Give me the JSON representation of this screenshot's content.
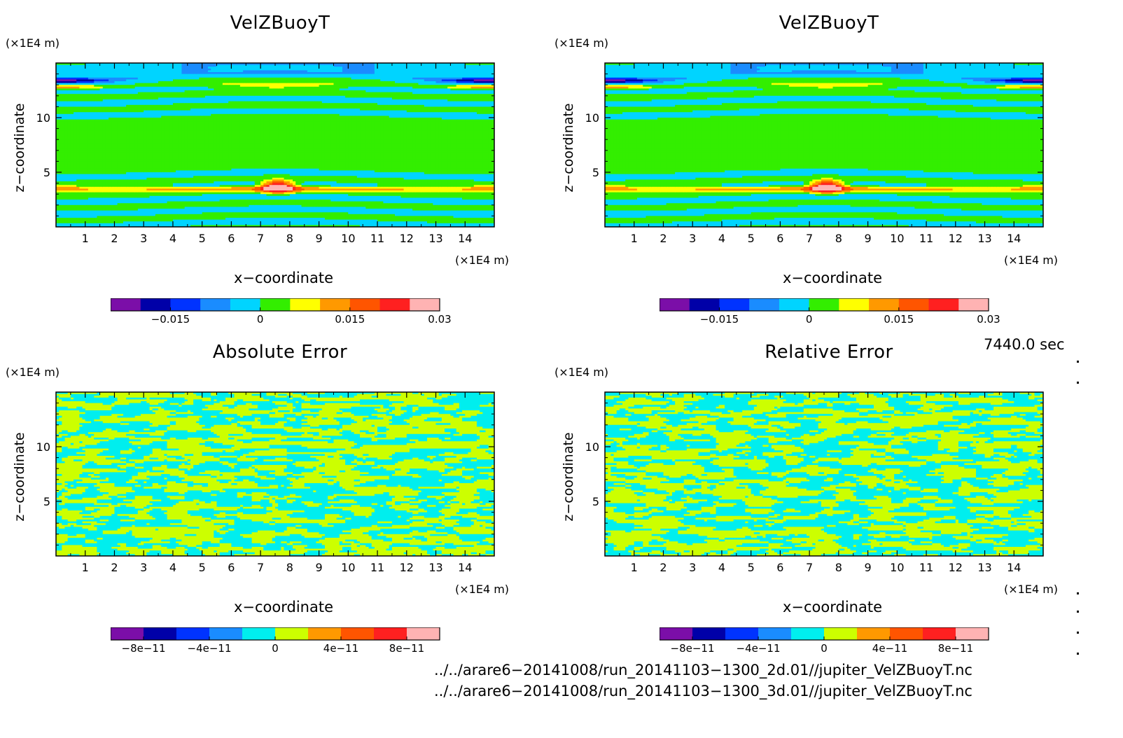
{
  "panels": [
    {
      "title": "VelZBuoyT",
      "y_unit": "(×1E4 m)",
      "x_unit": "(×1E4 m)",
      "ylabel": "z−coordinate",
      "xlabel": "x−coordinate",
      "colorbar": {
        "colors": [
          "#7b0ea8",
          "#0000a8",
          "#0033ff",
          "#1a8cff",
          "#00d4ff",
          "#33ee00",
          "#ffff00",
          "#ff9900",
          "#ff5500",
          "#ff2020",
          "#ffb3b3"
        ],
        "tick_labels": [
          "−0.015",
          "0",
          "0.015",
          "0.03"
        ],
        "tick_values": [
          -0.015,
          0,
          0.015,
          0.03
        ],
        "range": [
          -0.025,
          0.03
        ]
      }
    },
    {
      "title": "VelZBuoyT",
      "y_unit": "(×1E4 m)",
      "x_unit": "(×1E4 m)",
      "ylabel": "z−coordinate",
      "xlabel": "x−coordinate",
      "colorbar": {
        "colors": [
          "#7b0ea8",
          "#0000a8",
          "#0033ff",
          "#1a8cff",
          "#00d4ff",
          "#33ee00",
          "#ffff00",
          "#ff9900",
          "#ff5500",
          "#ff2020",
          "#ffb3b3"
        ],
        "tick_labels": [
          "−0.015",
          "0",
          "0.015",
          "0.03"
        ],
        "tick_values": [
          -0.015,
          0,
          0.015,
          0.03
        ],
        "range": [
          -0.025,
          0.03
        ]
      }
    },
    {
      "title": "Absolute Error",
      "y_unit": "(×1E4 m)",
      "x_unit": "(×1E4 m)",
      "ylabel": "z−coordinate",
      "xlabel": "x−coordinate",
      "colorbar": {
        "colors": [
          "#7b0ea8",
          "#0000a8",
          "#0033ff",
          "#1a8cff",
          "#00eeee",
          "#ccff00",
          "#ff9900",
          "#ff5500",
          "#ff2020",
          "#ffb3b3"
        ],
        "tick_labels": [
          "−8e−11",
          "−4e−11",
          "0",
          "4e−11",
          "8e−11"
        ],
        "tick_values": [
          -8e-11,
          -4e-11,
          0,
          4e-11,
          8e-11
        ],
        "range": [
          -1e-10,
          1e-10
        ]
      }
    },
    {
      "title": "Relative Error",
      "y_unit": "(×1E4 m)",
      "x_unit": "(×1E4 m)",
      "ylabel": "z−coordinate",
      "xlabel": "x−coordinate",
      "colorbar": {
        "colors": [
          "#7b0ea8",
          "#0000a8",
          "#0033ff",
          "#1a8cff",
          "#00eeee",
          "#ccff00",
          "#ff9900",
          "#ff5500",
          "#ff2020",
          "#ffb3b3"
        ],
        "tick_labels": [
          "−8e−11",
          "−4e−11",
          "0",
          "4e−11",
          "8e−11"
        ],
        "tick_values": [
          -8e-11,
          -4e-11,
          0,
          4e-11,
          8e-11
        ],
        "range": [
          -1e-10,
          1e-10
        ]
      }
    }
  ],
  "chart_data": [
    {
      "type": "heatmap",
      "title": "VelZBuoyT",
      "xlabel": "x−coordinate",
      "ylabel": "z−coordinate",
      "x_ticks": [
        1,
        2,
        3,
        4,
        5,
        6,
        7,
        8,
        9,
        10,
        11,
        12,
        13,
        14
      ],
      "y_ticks": [
        5,
        10
      ],
      "xlim": [
        0,
        15
      ],
      "ylim": [
        0,
        15
      ],
      "features": {
        "max_at": [
          7.6,
          3.5
        ],
        "max_value": 0.03
      }
    },
    {
      "type": "heatmap",
      "title": "VelZBuoyT",
      "xlabel": "x−coordinate",
      "ylabel": "z−coordinate",
      "x_ticks": [
        1,
        2,
        3,
        4,
        5,
        6,
        7,
        8,
        9,
        10,
        11,
        12,
        13,
        14
      ],
      "y_ticks": [
        5,
        10
      ],
      "xlim": [
        0,
        15
      ],
      "ylim": [
        0,
        15
      ],
      "features": {
        "max_at": [
          7.6,
          3.5
        ],
        "max_value": 0.03
      }
    },
    {
      "type": "heatmap",
      "title": "Absolute Error",
      "xlabel": "x−coordinate",
      "ylabel": "z−coordinate",
      "x_ticks": [
        1,
        2,
        3,
        4,
        5,
        6,
        7,
        8,
        9,
        10,
        11,
        12,
        13,
        14
      ],
      "y_ticks": [
        5,
        10
      ],
      "xlim": [
        0,
        15
      ],
      "ylim": [
        0,
        15
      ]
    },
    {
      "type": "heatmap",
      "title": "Relative Error",
      "xlabel": "x−coordinate",
      "ylabel": "z−coordinate",
      "x_ticks": [
        1,
        2,
        3,
        4,
        5,
        6,
        7,
        8,
        9,
        10,
        11,
        12,
        13,
        14
      ],
      "y_ticks": [
        5,
        10
      ],
      "xlim": [
        0,
        15
      ],
      "ylim": [
        0,
        15
      ]
    }
  ],
  "footer": {
    "time": "7440.0 sec",
    "files": [
      "../../arare6−20141008/run_20141103−1300_2d.01//jupiter_VelZBuoyT.nc",
      "../../arare6−20141008/run_20141103−1300_3d.01//jupiter_VelZBuoyT.nc"
    ]
  }
}
